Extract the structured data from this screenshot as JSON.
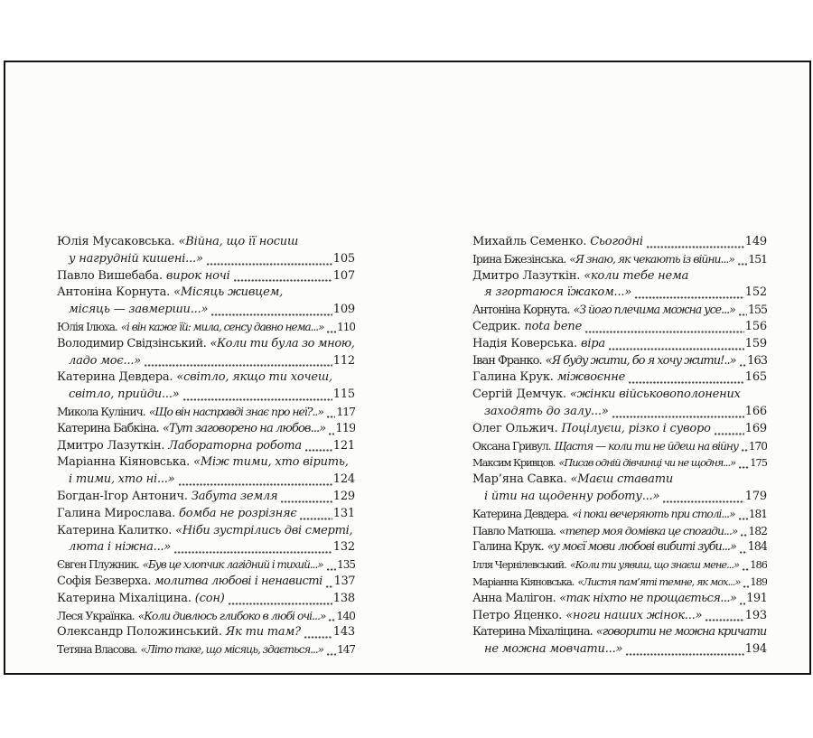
{
  "colors": {
    "paper": "#fcfcfa",
    "page_border": "#131313",
    "text": "#1f1e1c",
    "dot_leader": "#474641"
  },
  "toc": {
    "columns": [
      {
        "side": "left",
        "entries": [
          {
            "author": "Юлія Мусаковська.",
            "title": "«Війна, що її носиш",
            "cont": "у нагрудній кишені...»",
            "page": "105"
          },
          {
            "author": "Павло Вишебаба.",
            "title": "вирок ночі",
            "page": "107"
          },
          {
            "author": "Антоніна Корнута.",
            "title": "«Місяць живцем,",
            "cont": "місяць — завмерши...»",
            "page": "109"
          },
          {
            "author": "Юлія Ілюха.",
            "title": "«і він каже їй: мила, сенсу давно нема...»",
            "page": "110"
          },
          {
            "author": "Володимир Свідзінський.",
            "title": "«Коли ти була зо мною,",
            "cont": "ладо моє...»",
            "page": "112"
          },
          {
            "author": "Катерина Девдера.",
            "title": "«світло, якщо ти хочеш,",
            "cont": "світло, прийди...»",
            "page": "115"
          },
          {
            "author": "Микола Кулінич.",
            "title": "«Що він насправді знає про неї?..»",
            "page": "117"
          },
          {
            "author": "Катерина Бабкіна.",
            "title": "«Тут заговорено на любов...»",
            "page": "119"
          },
          {
            "author": "Дмитро Лазуткін.",
            "title": "Лабораторна робота",
            "page": "121"
          },
          {
            "author": "Маріанна Кіяновська.",
            "title": "«Між тими, хто вірить,",
            "cont": "і тими, хто ні...»",
            "page": "124"
          },
          {
            "author": "Богдан-Ігор Антонич.",
            "title": "Забута земля",
            "page": "129"
          },
          {
            "author": "Галина Мирослава.",
            "title": "бомба не розрізняє",
            "page": "131"
          },
          {
            "author": "Катерина Калитко.",
            "title": "«Ніби зустрілись дві смерті,",
            "cont": "люта і ніжна...»",
            "page": "132"
          },
          {
            "author": "Євген Плужник.",
            "title": "«Був це хлопчик лагідний і тихий...»",
            "page": "135"
          },
          {
            "author": "Софія Безверха.",
            "title": "молитва любові і ненависті",
            "page": "137"
          },
          {
            "author": "Катерина Міхаліцина.",
            "title": "(сон)",
            "page": "138"
          },
          {
            "author": "Леся Українка.",
            "title": "«Коли дивлюсь глибоко в любі очі...»",
            "page": "140"
          },
          {
            "author": "Олександр Положинський.",
            "title": "Як ти там?",
            "page": "143"
          },
          {
            "author": "Тетяна Власова.",
            "title": "«Літо таке, що місяць, здається...»",
            "page": "147"
          }
        ]
      },
      {
        "side": "right",
        "entries": [
          {
            "author": "Михайль Семенко.",
            "title": "Сьогодні",
            "page": "149"
          },
          {
            "author": "Ірина Бжезінська.",
            "title": "«Я знаю, як чекають із війни...»",
            "page": "151"
          },
          {
            "author": "Дмитро Лазуткін.",
            "title": "«коли тебе нема",
            "cont": "я згортаюся їжаком...»",
            "page": "152"
          },
          {
            "author": "Антоніна Корнута.",
            "title": "«З його плечима можна усе...»",
            "page": "155"
          },
          {
            "author": "Седрик.",
            "title": "nota bene",
            "page": "156"
          },
          {
            "author": "Надія Коверська.",
            "title": "віра",
            "page": "159"
          },
          {
            "author": "Іван Франко.",
            "title": "«Я буду жити, бо я хочу жити!..»",
            "page": "163"
          },
          {
            "author": "Галина Крук.",
            "title": "міжвоєнне",
            "page": "165"
          },
          {
            "author": "Сергій Демчук.",
            "title": "«жінки військовополонених",
            "cont": "заходять до залу...»",
            "page": "166"
          },
          {
            "author": "Олег Ольжич.",
            "title": "Поцілуєш, різко і суворо",
            "page": "169"
          },
          {
            "author": "Оксана Гривул.",
            "title": "Щастя — коли ти не йдеш на війну",
            "page": "170"
          },
          {
            "author": "Максим Кривцов.",
            "title": "«Писав одній дівчинці чи не щодня...»",
            "page": "175"
          },
          {
            "author": "Мар’яна Савка.",
            "title": "«Маєш ставати",
            "cont": "і йти на щоденну роботу...»",
            "page": "179"
          },
          {
            "author": "Катерина Девдера.",
            "title": "«і поки вечеряють при столі...»",
            "page": "181"
          },
          {
            "author": "Павло Матюша.",
            "title": "«тепер моя домівка це спогади...»",
            "page": "182"
          },
          {
            "author": "Галина Крук.",
            "title": "«у моєї мови любові вибиті зуби...»",
            "page": "184"
          },
          {
            "author": "Ілля Чернілевський.",
            "title": "«Коли ти уявиш, що знаєш мене...»",
            "page": "186"
          },
          {
            "author": "Маріанна Кіяновська.",
            "title": "«Листя пам’яті темне, як мох...»",
            "page": "189"
          },
          {
            "author": "Анна Малігон.",
            "title": "«так ніхто не прощається...»",
            "page": "191"
          },
          {
            "author": "Петро Яценко.",
            "title": "«ноги наших жінок...»",
            "page": "193"
          },
          {
            "author": "Катерина Міхаліцина.",
            "title": "«говорити не можна кричати",
            "cont": "не можна мовчати...»",
            "page": "194"
          }
        ]
      }
    ]
  }
}
